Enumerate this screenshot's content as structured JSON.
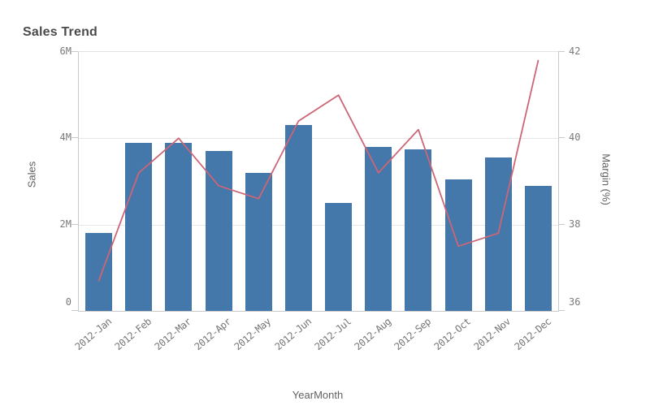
{
  "chart_data": {
    "type": "combo",
    "title": "Sales Trend",
    "x_axis_label": "YearMonth",
    "categories": [
      "2012-Jan",
      "2012-Feb",
      "2012-Mar",
      "2012-Apr",
      "2012-May",
      "2012-Jun",
      "2012-Jul",
      "2012-Aug",
      "2012-Sep",
      "2012-Oct",
      "2012-Nov",
      "2012-Dec"
    ],
    "series": [
      {
        "name": "Sales",
        "type": "bar",
        "axis": "left",
        "color": "#4477aa",
        "values": [
          1800000,
          3900000,
          3900000,
          3700000,
          3200000,
          4300000,
          2500000,
          3800000,
          3750000,
          3050000,
          3550000,
          2900000
        ]
      },
      {
        "name": "Margin (%)",
        "type": "line",
        "axis": "right",
        "color": "#cc6677",
        "values": [
          36.7,
          39.2,
          40.0,
          38.9,
          38.6,
          40.4,
          41.0,
          39.2,
          40.2,
          37.5,
          37.8,
          41.8
        ]
      }
    ],
    "left_axis": {
      "label": "Sales",
      "min": 0,
      "max": 6000000,
      "tick_labels": [
        "0",
        "2M",
        "4M",
        "6M"
      ]
    },
    "right_axis": {
      "label": "Margin (%)",
      "min": 36,
      "max": 42,
      "tick_labels": [
        "36",
        "38",
        "40",
        "42"
      ]
    },
    "grid": "horizontal",
    "legend": "none",
    "background": "#ffffff"
  }
}
